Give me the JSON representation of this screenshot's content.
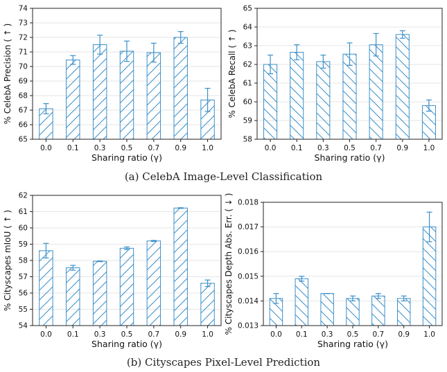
{
  "captions": {
    "a": "(a) CelebA Image-Level Classification",
    "b": "(b) Cityscapes Pixel-Level Prediction"
  },
  "colors": {
    "bar_edge": "#3a8fc9",
    "hatch": "#3a8fc9",
    "grid": "#e6e6e6",
    "axis": "#222222"
  },
  "chart_data": [
    {
      "type": "bar",
      "categories": [
        "0.0",
        "0.1",
        "0.3",
        "0.5",
        "0.7",
        "0.9",
        "1.0"
      ],
      "values": [
        67.1,
        70.45,
        71.5,
        71.05,
        70.95,
        72.0,
        67.7
      ],
      "errors": [
        0.35,
        0.3,
        0.65,
        0.7,
        0.65,
        0.4,
        0.8
      ],
      "xlabel": "Sharing ratio (γ)",
      "ylabel": "% CelebA Precision ( ↑ )",
      "ylim": [
        65,
        74
      ],
      "yticks": [
        "65",
        "66",
        "67",
        "68",
        "69",
        "70",
        "71",
        "72",
        "73",
        "74"
      ],
      "hatch": "forward",
      "grid": true
    },
    {
      "type": "bar",
      "categories": [
        "0.0",
        "0.1",
        "0.3",
        "0.5",
        "0.7",
        "0.9",
        "1.0"
      ],
      "values": [
        62.0,
        62.65,
        62.15,
        62.55,
        63.05,
        63.6,
        59.8
      ],
      "errors": [
        0.5,
        0.4,
        0.35,
        0.6,
        0.6,
        0.2,
        0.3
      ],
      "xlabel": "Sharing ratio (γ)",
      "ylabel": "% CelebA Recall ( ↑ )",
      "ylim": [
        58,
        65
      ],
      "yticks": [
        "58",
        "59",
        "60",
        "61",
        "62",
        "63",
        "64",
        "65"
      ],
      "hatch": "back",
      "grid": true
    },
    {
      "type": "bar",
      "categories": [
        "0.0",
        "0.1",
        "0.3",
        "0.5",
        "0.7",
        "0.9",
        "1.0"
      ],
      "values": [
        58.6,
        57.55,
        57.95,
        58.75,
        59.2,
        61.22,
        56.6
      ],
      "errors": [
        0.45,
        0.15,
        0.02,
        0.08,
        0.03,
        0.02,
        0.2
      ],
      "xlabel": "Sharing ratio (γ)",
      "ylabel": "% Cityscapes mIoU ( ↑ )",
      "ylim": [
        54,
        62
      ],
      "yticks": [
        "54",
        "55",
        "56",
        "57",
        "58",
        "59",
        "60",
        "61",
        "62"
      ],
      "hatch": "forward",
      "grid": true
    },
    {
      "type": "bar",
      "categories": [
        "0.0",
        "0.1",
        "0.3",
        "0.5",
        "0.7",
        "0.9",
        "1.0"
      ],
      "values": [
        0.0141,
        0.0149,
        0.0143,
        0.0141,
        0.0142,
        0.0141,
        0.017
      ],
      "errors": [
        0.0002,
        0.0001,
        0.0,
        0.0001,
        0.0001,
        0.0001,
        0.0006
      ],
      "xlabel": "Sharing ratio (γ)",
      "ylabel": "% Cityscapes Depth Abs. Err. ( ↓ )",
      "ylim": [
        0.013,
        0.018
      ],
      "yticks": [
        "0.013",
        "0.014",
        "0.015",
        "0.016",
        "0.017",
        "0.018"
      ],
      "hatch": "back",
      "grid": true
    }
  ]
}
